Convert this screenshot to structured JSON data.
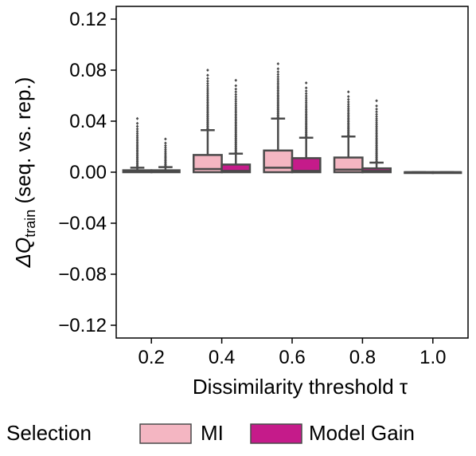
{
  "chart_data": {
    "type": "boxplot",
    "xlabel": "Dissimilarity threshold τ",
    "ylabel": {
      "prefix": "ΔQ",
      "subscript": "train",
      "suffix": " (seq. vs. rep.)"
    },
    "categories": [
      "0.2",
      "0.4",
      "0.6",
      "0.8",
      "1.0"
    ],
    "ylim": [
      -0.13,
      0.13
    ],
    "yticks": [
      -0.12,
      -0.08,
      -0.04,
      0.0,
      0.04,
      0.08,
      0.12
    ],
    "ytick_labels": [
      "−0.12",
      "−0.08",
      "−0.04",
      "0.00",
      "0.04",
      "0.08",
      "0.12"
    ],
    "grid": false,
    "legend": {
      "title": "Selection",
      "placement": "bottom",
      "entries": [
        {
          "name": "MI",
          "color": "#f4b6c2"
        },
        {
          "name": "Model Gain",
          "color": "#c51b8a"
        }
      ]
    },
    "series": [
      {
        "name": "MI",
        "color": "#f4b6c2",
        "boxes": [
          {
            "category": "0.2",
            "q1": 0.0,
            "median": 0.0005,
            "q3": 0.0015,
            "whisker_low": 0.0,
            "whisker_high": 0.0035,
            "outlier_max": 0.042
          },
          {
            "category": "0.4",
            "q1": 0.0,
            "median": 0.0025,
            "q3": 0.0135,
            "whisker_low": 0.0,
            "whisker_high": 0.033,
            "outlier_max": 0.08
          },
          {
            "category": "0.6",
            "q1": 0.0,
            "median": 0.0035,
            "q3": 0.017,
            "whisker_low": 0.0,
            "whisker_high": 0.042,
            "outlier_max": 0.085
          },
          {
            "category": "0.8",
            "q1": 0.0,
            "median": 0.002,
            "q3": 0.0115,
            "whisker_low": 0.0,
            "whisker_high": 0.028,
            "outlier_max": 0.063
          },
          {
            "category": "1.0",
            "q1": 0.0,
            "median": 0.0,
            "q3": 0.0,
            "whisker_low": 0.0,
            "whisker_high": 0.0,
            "outlier_max": 0.0
          }
        ]
      },
      {
        "name": "Model Gain",
        "color": "#c51b8a",
        "boxes": [
          {
            "category": "0.2",
            "q1": 0.0,
            "median": 0.0005,
            "q3": 0.0015,
            "whisker_low": 0.0,
            "whisker_high": 0.004,
            "outlier_max": 0.026
          },
          {
            "category": "0.4",
            "q1": 0.0,
            "median": 0.001,
            "q3": 0.006,
            "whisker_low": 0.0,
            "whisker_high": 0.0145,
            "outlier_max": 0.072
          },
          {
            "category": "0.6",
            "q1": 0.0,
            "median": 0.001,
            "q3": 0.011,
            "whisker_low": 0.0,
            "whisker_high": 0.027,
            "outlier_max": 0.07
          },
          {
            "category": "0.8",
            "q1": 0.0,
            "median": 0.001,
            "q3": 0.003,
            "whisker_low": 0.0,
            "whisker_high": 0.0075,
            "outlier_max": 0.056
          },
          {
            "category": "1.0",
            "q1": 0.0,
            "median": 0.0,
            "q3": 0.0,
            "whisker_low": 0.0,
            "whisker_high": 0.0,
            "outlier_max": 0.0
          }
        ]
      }
    ]
  }
}
